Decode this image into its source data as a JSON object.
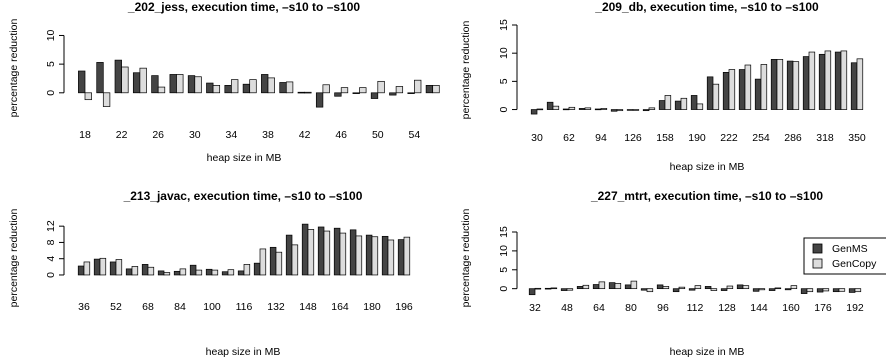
{
  "legend": {
    "entries": [
      {
        "name": "GenMS",
        "color": "#444444"
      },
      {
        "name": "GenCopy",
        "color": "#dddddd"
      }
    ]
  },
  "chart_data": [
    {
      "type": "bar",
      "title": "_202_jess, execution time, –s10 to –s100",
      "xlabel": "heap size in MB",
      "ylabel": "percentage reduction",
      "ylim": [
        -3,
        12
      ],
      "yticks": [
        "0",
        "5",
        "10"
      ],
      "x_tick_labels": [
        "18",
        "22",
        "26",
        "30",
        "34",
        "38",
        "42",
        "46",
        "50",
        "54"
      ],
      "categories": [
        "18",
        "20",
        "22",
        "24",
        "26",
        "28",
        "30",
        "32",
        "34",
        "36",
        "38",
        "40",
        "42",
        "44",
        "46",
        "48",
        "50",
        "52",
        "54",
        "56"
      ],
      "series": [
        {
          "name": "GenMS",
          "values": [
            3.8,
            5.3,
            5.7,
            3.5,
            3.0,
            3.2,
            3.0,
            1.7,
            1.3,
            1.5,
            3.2,
            1.8,
            0.1,
            -2.5,
            -0.6,
            -0.1,
            -1.0,
            -0.4,
            -0.1,
            1.3
          ]
        },
        {
          "name": "GenCopy",
          "values": [
            -1.2,
            -2.4,
            4.5,
            4.3,
            1.0,
            3.2,
            2.8,
            1.3,
            2.3,
            2.3,
            2.6,
            1.9,
            0.1,
            1.4,
            0.9,
            0.9,
            2.0,
            1.1,
            2.2,
            1.3
          ]
        }
      ]
    },
    {
      "type": "bar",
      "title": "_209_db, execution time, –s10 to –s100",
      "xlabel": "heap size in MB",
      "ylabel": "percentage reduction",
      "ylim": [
        -1.5,
        15
      ],
      "yticks": [
        "0",
        "5",
        "10",
        "15"
      ],
      "x_tick_labels": [
        "30",
        "62",
        "94",
        "126",
        "158",
        "190",
        "222",
        "254",
        "286",
        "318",
        "350"
      ],
      "categories": [
        "30",
        "46",
        "62",
        "78",
        "94",
        "110",
        "126",
        "142",
        "158",
        "174",
        "190",
        "206",
        "222",
        "238",
        "254",
        "270",
        "286",
        "302",
        "318",
        "334",
        "350"
      ],
      "series": [
        {
          "name": "GenMS",
          "values": [
            -0.8,
            1.3,
            0.1,
            0.2,
            0.1,
            -0.3,
            0.0,
            -0.2,
            1.6,
            1.5,
            2.5,
            5.8,
            6.6,
            7.1,
            5.4,
            8.9,
            8.6,
            9.4,
            9.8,
            10.2,
            8.3
          ]
        },
        {
          "name": "GenCopy",
          "values": [
            0.1,
            0.6,
            0.4,
            0.3,
            0.2,
            -0.2,
            -0.1,
            0.3,
            2.5,
            2.0,
            1.0,
            4.5,
            7.1,
            7.9,
            8.0,
            8.9,
            8.5,
            10.2,
            10.4,
            10.4,
            9.0
          ]
        }
      ]
    },
    {
      "type": "bar",
      "title": "_213_javac, execution time, –s10 to –s100",
      "xlabel": "heap size in MB",
      "ylabel": "percentage reduction",
      "ylim": [
        -0.5,
        14.5
      ],
      "yticks": [
        "0",
        "4",
        "8",
        "12"
      ],
      "x_tick_labels": [
        "36",
        "52",
        "68",
        "84",
        "100",
        "116",
        "132",
        "148",
        "164",
        "180",
        "196"
      ],
      "categories": [
        "36",
        "44",
        "52",
        "60",
        "68",
        "76",
        "84",
        "92",
        "100",
        "108",
        "116",
        "124",
        "132",
        "140",
        "148",
        "156",
        "164",
        "172",
        "180",
        "188",
        "196"
      ],
      "series": [
        {
          "name": "GenMS",
          "values": [
            2.2,
            3.9,
            3.2,
            1.5,
            2.6,
            1.0,
            0.9,
            2.4,
            1.4,
            0.8,
            1.0,
            2.9,
            6.8,
            9.8,
            12.5,
            11.8,
            11.5,
            11.1,
            9.8,
            9.5,
            8.7
          ]
        },
        {
          "name": "GenCopy",
          "values": [
            3.2,
            4.1,
            3.8,
            2.1,
            1.9,
            0.6,
            1.5,
            1.2,
            1.2,
            1.3,
            2.6,
            6.4,
            5.6,
            7.4,
            11.2,
            10.8,
            10.3,
            9.6,
            9.4,
            8.6,
            9.3
          ]
        }
      ]
    },
    {
      "type": "bar",
      "title": "_227_mtrt, execution time, –s10 to –s100",
      "xlabel": "heap size in MB",
      "ylabel": "percentage reduction",
      "ylim": [
        -3,
        15
      ],
      "yticks": [
        "0",
        "5",
        "10",
        "15"
      ],
      "x_tick_labels": [
        "32",
        "48",
        "64",
        "80",
        "96",
        "112",
        "128",
        "144",
        "160",
        "176",
        "192"
      ],
      "categories": [
        "32",
        "40",
        "48",
        "56",
        "64",
        "72",
        "80",
        "88",
        "96",
        "104",
        "112",
        "120",
        "128",
        "136",
        "144",
        "152",
        "160",
        "168",
        "176",
        "184",
        "192"
      ],
      "series": [
        {
          "name": "GenMS",
          "values": [
            -1.6,
            0.1,
            -0.5,
            0.6,
            1.1,
            1.6,
            1.0,
            -0.4,
            1.0,
            -0.8,
            -0.4,
            0.6,
            -0.5,
            1.0,
            -0.7,
            -0.5,
            -0.3,
            -1.3,
            -0.9,
            -0.8,
            -1.0
          ]
        },
        {
          "name": "GenCopy",
          "values": [
            0.1,
            0.2,
            -0.4,
            0.9,
            1.8,
            1.4,
            2.0,
            -0.8,
            0.6,
            0.4,
            0.8,
            -0.5,
            0.7,
            0.8,
            -0.3,
            0.2,
            0.8,
            -0.8,
            -0.6,
            -0.7,
            -0.8
          ]
        }
      ]
    }
  ]
}
